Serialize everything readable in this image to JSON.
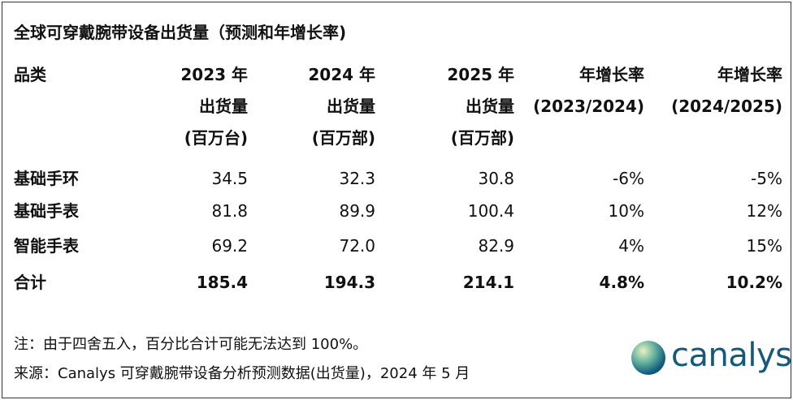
{
  "title": "全球可穿戴腕带设备出货量（预测和年增长率)",
  "table": {
    "header": [
      [
        "品类"
      ],
      [
        "2023 年",
        "出货量",
        "(百万台)"
      ],
      [
        "2024 年",
        "出货量",
        "(百万部)"
      ],
      [
        "2025 年",
        "出货量",
        "(百万部)"
      ],
      [
        "年增长率",
        "(2023/2024)"
      ],
      [
        "年增长率",
        "(2024/2025)"
      ]
    ],
    "rows": [
      [
        "基础手环",
        "34.5",
        "32.3",
        "30.8",
        "-6%",
        "-5%"
      ],
      [
        "基础手表",
        "81.8",
        "89.9",
        "100.4",
        "10%",
        "12%"
      ],
      [
        "智能手表",
        "69.2",
        "72.0",
        "82.9",
        "4%",
        "15%"
      ],
      [
        "合计",
        "185.4",
        "194.3",
        "214.1",
        "4.8%",
        "10.2%"
      ]
    ]
  },
  "notes": [
    "注：由于四舍五入，百分比合计可能无法达到 100%。",
    "来源：Canalys 可穿戴腕带设备分析预测数据(出货量)，2024 年 5 月"
  ],
  "logo": "canalys"
}
